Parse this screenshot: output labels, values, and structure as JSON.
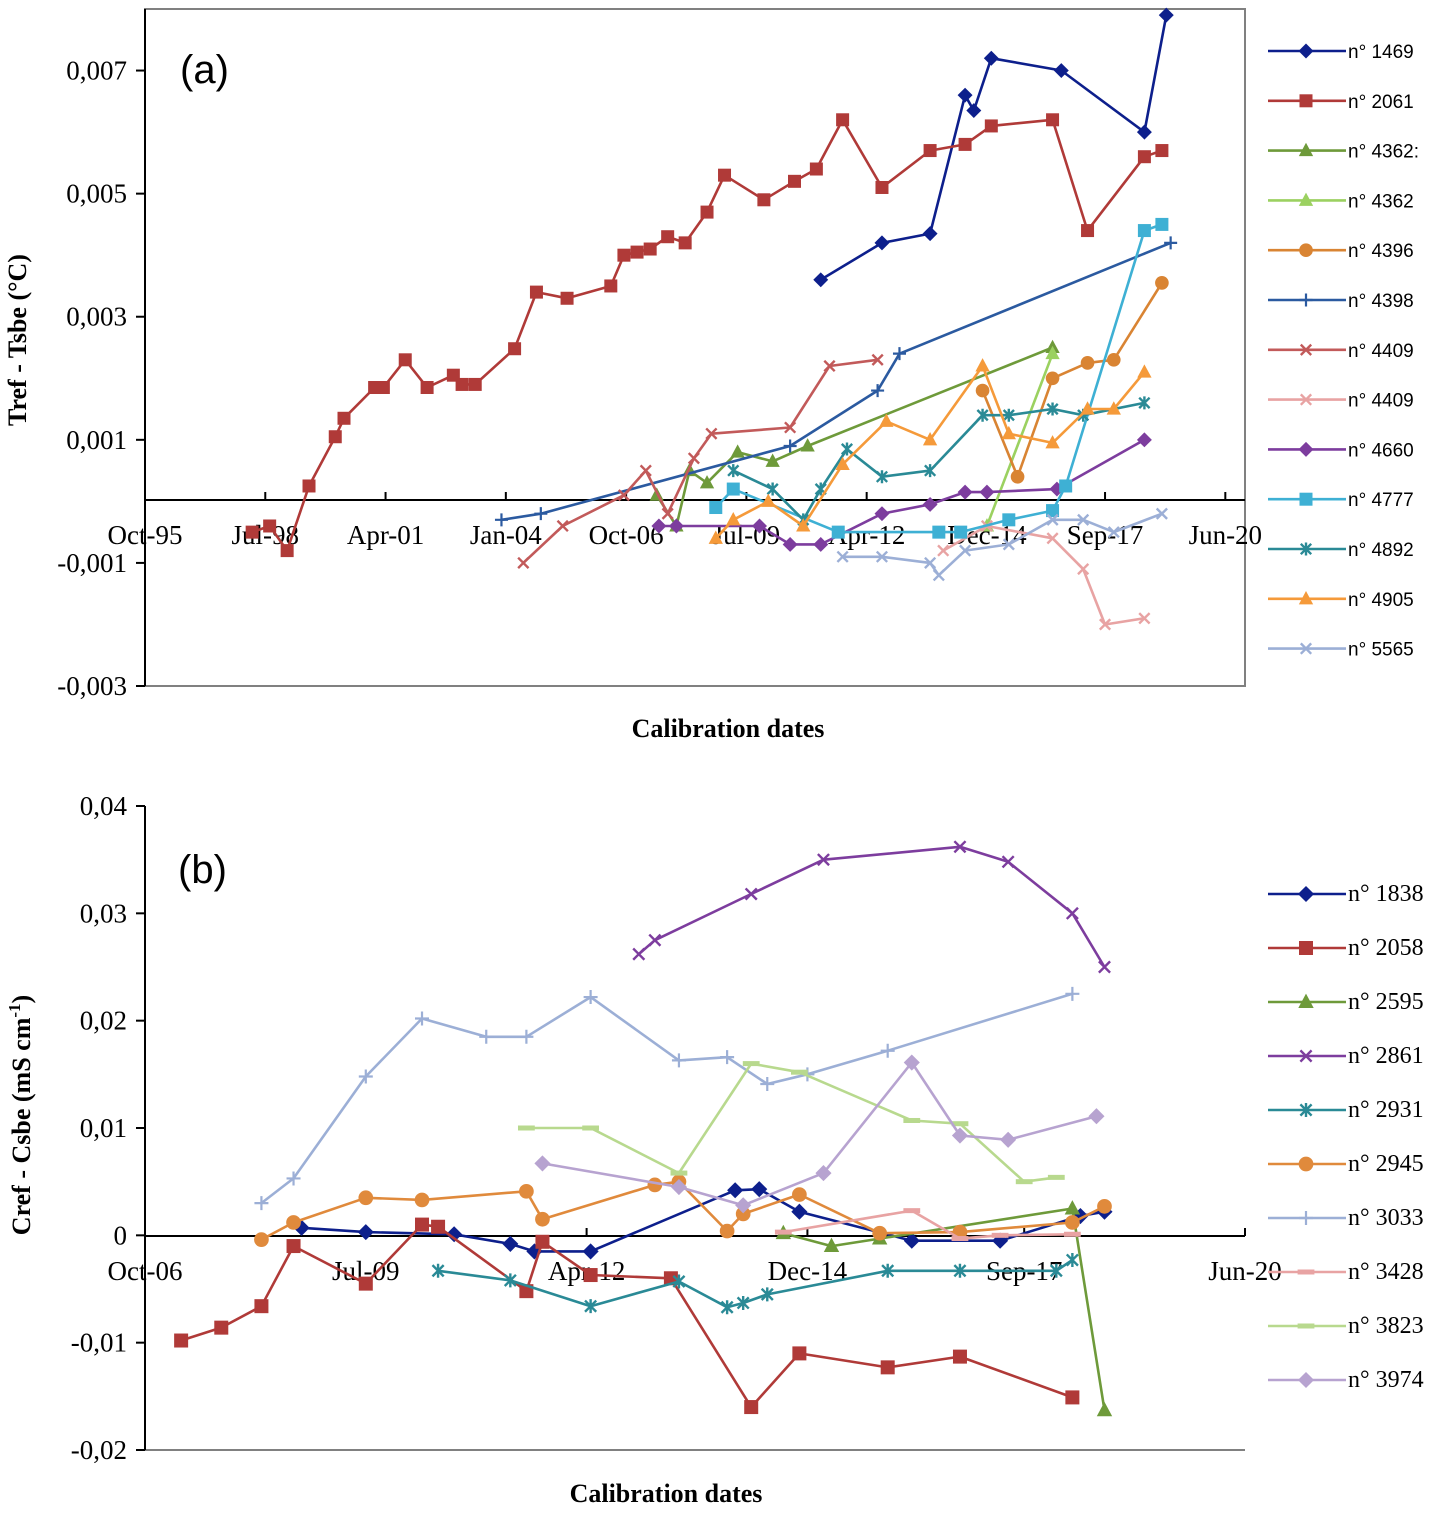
{
  "chart_data": [
    {
      "panel": "a",
      "type": "line",
      "label": "(a)",
      "xlabel": "Calibration dates",
      "ylabel": "Tref - Tsbe (°C)",
      "ylim": [
        -0.003,
        0.008
      ],
      "yticks": [
        0.007,
        0.005,
        0.003,
        0.001,
        -0.001,
        -0.003
      ],
      "ytick_labels": [
        "0,007",
        "0,005",
        "0,003",
        "0,001",
        "-0,001",
        "-0,003"
      ],
      "xlim": [
        1995.75,
        2020.9
      ],
      "xticks": [
        1995.75,
        1998.5,
        2001.25,
        2004.0,
        2006.75,
        2009.5,
        2012.25,
        2015.0,
        2017.7,
        2020.45
      ],
      "xtick_labels": [
        "Oct-95",
        "Jul-98",
        "Apr-01",
        "Jan-04",
        "Oct-06",
        "Jul-09",
        "Apr-12",
        "Dec-14",
        "Sep-17",
        "Jun-20"
      ],
      "series": [
        {
          "name": "n° 1469",
          "color": "#0d1f8c",
          "marker": "diamond",
          "x": [
            2011.2,
            2012.6,
            2013.7,
            2014.5,
            2014.7,
            2015.1,
            2016.7,
            2018.6,
            2019.1
          ],
          "y": [
            0.0036,
            0.0042,
            0.00435,
            0.0066,
            0.00635,
            0.0072,
            0.007,
            0.006,
            0.0079
          ]
        },
        {
          "name": "n° 2061",
          "color": "#b03a38",
          "marker": "square",
          "x": [
            1998.2,
            1998.6,
            1999.0,
            1999.5,
            2000.1,
            2000.3,
            2001.0,
            2001.2,
            2001.7,
            2002.2,
            2002.8,
            2003.0,
            2003.3,
            2004.2,
            2004.7,
            2005.4,
            2006.4,
            2006.7,
            2007.0,
            2007.3,
            2007.7,
            2008.1,
            2008.6,
            2009.0,
            2009.9,
            2010.6,
            2011.1,
            2011.7,
            2012.6,
            2013.7,
            2014.5,
            2015.1,
            2016.5,
            2017.3,
            2018.6,
            2019.0
          ],
          "y": [
            -0.0005,
            -0.0004,
            -0.0008,
            0.00025,
            0.00105,
            0.00135,
            0.00185,
            0.00185,
            0.0023,
            0.00185,
            0.00205,
            0.0019,
            0.0019,
            0.00248,
            0.0034,
            0.0033,
            0.0035,
            0.004,
            0.00405,
            0.0041,
            0.0043,
            0.0042,
            0.0047,
            0.0053,
            0.0049,
            0.0052,
            0.0054,
            0.0062,
            0.0051,
            0.0057,
            0.0058,
            0.0061,
            0.0062,
            0.0044,
            0.0056,
            0.0057
          ]
        },
        {
          "name": "n° 4362:",
          "color": "#6e9a3a",
          "marker": "triangle",
          "x": [
            2007.45,
            2007.9,
            2008.2,
            2008.6,
            2009.3,
            2010.1,
            2010.9,
            2016.5
          ],
          "y": [
            0.0001,
            -0.0004,
            0.0005,
            0.0003,
            0.0008,
            0.00065,
            0.0009,
            0.0025
          ]
        },
        {
          "name": "n° 4362",
          "color": "#9bd160",
          "marker": "triangle",
          "x": [
            2015.0,
            2016.5
          ],
          "y": [
            -0.0004,
            0.0024
          ]
        },
        {
          "name": "n° 4396",
          "color": "#d98433",
          "marker": "circle",
          "x": [
            2014.9,
            2015.7,
            2016.5,
            2017.3,
            2017.9,
            2019.0
          ],
          "y": [
            0.0018,
            0.0004,
            0.002,
            0.00225,
            0.0023,
            0.00355
          ]
        },
        {
          "name": "n° 4398",
          "color": "#2b5aa0",
          "marker": "plus",
          "x": [
            2003.9,
            2004.8,
            2010.5,
            2012.5,
            2013.0,
            2019.2
          ],
          "y": [
            -0.0003,
            -0.0002,
            0.0009,
            0.0018,
            0.0024,
            0.0042
          ]
        },
        {
          "name": "n° 4409",
          "color": "#c25a5a",
          "marker": "x",
          "x": [
            2004.4,
            2005.3,
            2006.7,
            2007.2,
            2007.7,
            2008.3,
            2008.7,
            2010.5,
            2011.4,
            2012.5
          ],
          "y": [
            -0.001,
            -0.0004,
            0.0001,
            0.0005,
            -0.0002,
            0.0007,
            0.0011,
            0.0012,
            0.0022,
            0.0023
          ]
        },
        {
          "name": "n° 4409",
          "color": "#e8a3a3",
          "marker": "x",
          "x": [
            2014.0,
            2015.0,
            2016.5,
            2017.2,
            2017.7,
            2018.6
          ],
          "y": [
            -0.0008,
            -0.0004,
            -0.0006,
            -0.0011,
            -0.002,
            -0.0019
          ]
        },
        {
          "name": "n° 4660",
          "color": "#7d3d9e",
          "marker": "diamond",
          "x": [
            2007.5,
            2007.9,
            2009.8,
            2010.5,
            2011.2,
            2012.6,
            2013.7,
            2014.5,
            2015.0,
            2016.6,
            2018.6
          ],
          "y": [
            -0.0004,
            -0.0004,
            -0.0004,
            -0.0007,
            -0.0007,
            -0.0002,
            -5e-05,
            0.00015,
            0.00015,
            0.0002,
            0.001
          ]
        },
        {
          "name": "n° 4777",
          "color": "#3eb0d4",
          "marker": "square",
          "x": [
            2008.8,
            2009.2,
            2011.6,
            2013.9,
            2014.4,
            2015.5,
            2016.5,
            2016.8,
            2018.6,
            2019.0
          ],
          "y": [
            -0.0001,
            0.0002,
            -0.0005,
            -0.0005,
            -0.0005,
            -0.0003,
            -0.00015,
            0.00025,
            0.0044,
            0.0045
          ]
        },
        {
          "name": "n° 4892",
          "color": "#2a8a96",
          "marker": "asterisk",
          "x": [
            2009.2,
            2010.1,
            2010.8,
            2011.2,
            2011.8,
            2012.6,
            2013.7,
            2014.9,
            2015.5,
            2016.5,
            2017.2,
            2018.6
          ],
          "y": [
            0.0005,
            0.0002,
            -0.0003,
            0.0002,
            0.00085,
            0.0004,
            0.0005,
            0.0014,
            0.0014,
            0.0015,
            0.0014,
            0.0016
          ]
        },
        {
          "name": "n° 4905",
          "color": "#f59a3a",
          "marker": "triangle",
          "x": [
            2008.8,
            2009.2,
            2010.0,
            2010.8,
            2011.7,
            2012.7,
            2013.7,
            2014.9,
            2015.5,
            2016.5,
            2017.3,
            2017.9,
            2018.6
          ],
          "y": [
            -0.0006,
            -0.0003,
            0.0,
            -0.0004,
            0.0006,
            0.0013,
            0.001,
            0.0022,
            0.0011,
            0.00095,
            0.0015,
            0.0015,
            0.0021
          ]
        },
        {
          "name": "n° 5565",
          "color": "#9cafd6",
          "marker": "x",
          "x": [
            2011.7,
            2012.6,
            2013.7,
            2013.9,
            2014.5,
            2015.5,
            2016.5,
            2017.2,
            2017.9,
            2019.0
          ],
          "y": [
            -0.0009,
            -0.0009,
            -0.001,
            -0.0012,
            -0.0008,
            -0.0007,
            -0.0003,
            -0.0003,
            -0.0005,
            -0.0002
          ]
        }
      ]
    },
    {
      "panel": "b",
      "type": "line",
      "label": "(b)",
      "xlabel": "Calibration dates",
      "ylabel": "Cref - Csbe (mS cm-1)",
      "ylabel_main": "Cref - Csbe (mS cm",
      "ylabel_sup": "-1",
      "ylabel_close": ")",
      "ylim": [
        -0.02,
        0.04
      ],
      "yticks": [
        0.04,
        0.03,
        0.02,
        0.01,
        0,
        -0.01,
        -0.02
      ],
      "ytick_labels": [
        "0,04",
        "0,03",
        "0,02",
        "0,01",
        "0",
        "-0,01",
        "-0,02"
      ],
      "xlim": [
        2006.75,
        2020.45
      ],
      "xticks": [
        2006.75,
        2009.5,
        2012.25,
        2015.0,
        2017.7,
        2020.45
      ],
      "xtick_labels": [
        "Oct-06",
        "Jul-09",
        "Apr-12",
        "Dec-14",
        "Sep-17",
        "Jun-20"
      ],
      "series": [
        {
          "name": "n° 1838",
          "color": "#0d1f8c",
          "marker": "diamond",
          "x": [
            2008.7,
            2009.5,
            2010.6,
            2011.3,
            2011.6,
            2012.3,
            2014.1,
            2014.4,
            2014.9,
            2016.3,
            2017.4,
            2018.4,
            2018.7
          ],
          "y": [
            0.0007,
            0.0003,
            0.0001,
            -0.0008,
            -0.0015,
            -0.0015,
            0.0042,
            0.0043,
            0.0022,
            -0.0005,
            -0.0005,
            0.0018,
            0.0022
          ]
        },
        {
          "name": "n° 2058",
          "color": "#b03a38",
          "marker": "square",
          "x": [
            2007.2,
            2007.7,
            2008.2,
            2008.6,
            2009.5,
            2010.2,
            2010.4,
            2011.5,
            2011.7,
            2012.3,
            2013.3,
            2014.3,
            2014.9,
            2016.0,
            2016.9,
            2018.3
          ],
          "y": [
            -0.0098,
            -0.0086,
            -0.0066,
            -0.001,
            -0.0045,
            0.001,
            0.0008,
            -0.0052,
            -0.0006,
            -0.0037,
            -0.004,
            -0.016,
            -0.011,
            -0.0123,
            -0.0113,
            -0.0151
          ]
        },
        {
          "name": "n° 2595",
          "color": "#6e9a3a",
          "marker": "triangle",
          "x": [
            2014.7,
            2015.3,
            2015.9,
            2018.3,
            2018.7
          ],
          "y": [
            0.0002,
            -0.001,
            -0.0003,
            0.0025,
            -0.0163
          ]
        },
        {
          "name": "n° 2861",
          "color": "#7d3d9e",
          "marker": "x",
          "x": [
            2012.9,
            2013.1,
            2014.3,
            2015.2,
            2016.9,
            2017.5,
            2018.3,
            2018.7
          ],
          "y": [
            0.0262,
            0.0275,
            0.0318,
            0.035,
            0.0362,
            0.0348,
            0.03,
            0.025
          ]
        },
        {
          "name": "n° 2931",
          "color": "#2a8a96",
          "marker": "asterisk",
          "x": [
            2010.4,
            2011.3,
            2012.3,
            2013.4,
            2014.0,
            2014.2,
            2014.5,
            2016.0,
            2016.9,
            2018.1,
            2018.3
          ],
          "y": [
            -0.0033,
            -0.0042,
            -0.0066,
            -0.0043,
            -0.0067,
            -0.0063,
            -0.0055,
            -0.0033,
            -0.0033,
            -0.0033,
            -0.0023
          ]
        },
        {
          "name": "n° 2945",
          "color": "#e08a3c",
          "marker": "circle",
          "x": [
            2008.2,
            2008.6,
            2009.5,
            2010.2,
            2011.5,
            2011.7,
            2013.1,
            2013.4,
            2014.0,
            2014.2,
            2014.9,
            2015.9,
            2016.9,
            2018.3,
            2018.7
          ],
          "y": [
            -0.0004,
            0.0012,
            0.0035,
            0.0033,
            0.0041,
            0.0015,
            0.0047,
            0.005,
            0.0004,
            0.002,
            0.0038,
            0.0002,
            0.0003,
            0.0012,
            0.0027
          ]
        },
        {
          "name": "n° 3033",
          "color": "#9cafd6",
          "marker": "plus",
          "x": [
            2008.2,
            2008.6,
            2009.5,
            2010.2,
            2011.0,
            2011.5,
            2012.3,
            2013.4,
            2014.0,
            2014.5,
            2015.0,
            2016.0,
            2018.3
          ],
          "y": [
            0.003,
            0.0053,
            0.0148,
            0.0202,
            0.0185,
            0.0185,
            0.0222,
            0.0163,
            0.0166,
            0.0141,
            0.015,
            0.0172,
            0.0225
          ]
        },
        {
          "name": "n° 3428",
          "color": "#e8a3a3",
          "marker": "dash",
          "x": [
            2014.7,
            2016.3,
            2016.9,
            2017.4,
            2018.3
          ],
          "y": [
            0.0003,
            0.0023,
            -0.0003,
            0.0,
            0.0001
          ]
        },
        {
          "name": "n° 3823",
          "color": "#b8d98e",
          "marker": "dash",
          "x": [
            2011.5,
            2012.3,
            2013.4,
            2014.3,
            2014.9,
            2016.3,
            2016.9,
            2017.7,
            2018.1
          ],
          "y": [
            0.01,
            0.01,
            0.0058,
            0.016,
            0.0152,
            0.0107,
            0.0104,
            0.005,
            0.0054
          ]
        },
        {
          "name": "n° 3974",
          "color": "#b7a3d0",
          "marker": "diamond",
          "x": [
            2011.7,
            2013.4,
            2014.2,
            2015.2,
            2016.3,
            2016.9,
            2017.5,
            2018.6
          ],
          "y": [
            0.0067,
            0.0045,
            0.0028,
            0.0058,
            0.0161,
            0.0093,
            0.0089,
            0.0111
          ]
        }
      ]
    }
  ]
}
